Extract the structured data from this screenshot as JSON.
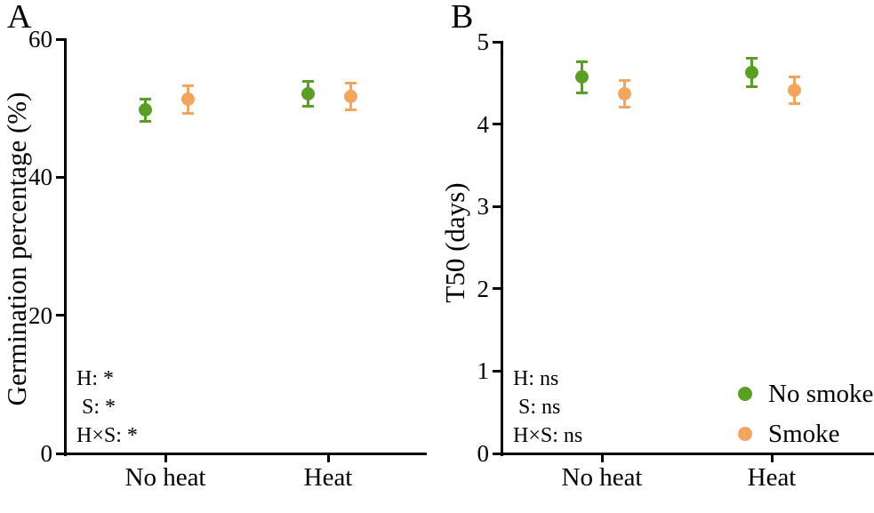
{
  "colors": {
    "no_smoke": "#5a9e24",
    "smoke": "#f2a55f",
    "axis": "#000000",
    "background": "#ffffff"
  },
  "chart_data": [
    {
      "panel": "A",
      "type": "scatter",
      "title": "",
      "xlabel": "",
      "ylabel": "Germination percentage (%)",
      "ylim": [
        0,
        60
      ],
      "yticks": [
        0,
        20,
        40,
        60
      ],
      "grid": false,
      "categories": [
        "No heat",
        "Heat"
      ],
      "series": [
        {
          "name": "No smoke",
          "color": "#5a9e24",
          "values": [
            49.7,
            52.1
          ],
          "errors": [
            1.6,
            1.8
          ]
        },
        {
          "name": "Smoke",
          "color": "#f2a55f",
          "values": [
            51.3,
            51.7
          ],
          "errors": [
            2.0,
            1.9
          ]
        }
      ],
      "stats": [
        "H: *",
        " S: *",
        "H×S: *"
      ],
      "legend_visible": false
    },
    {
      "panel": "B",
      "type": "scatter",
      "title": "",
      "xlabel": "",
      "ylabel": "T50 (days)",
      "ylim": [
        0,
        5
      ],
      "yticks": [
        0,
        1,
        2,
        3,
        4,
        5
      ],
      "grid": false,
      "categories": [
        "No heat",
        "Heat"
      ],
      "series": [
        {
          "name": "No smoke",
          "color": "#5a9e24",
          "values": [
            4.57,
            4.63
          ],
          "errors": [
            0.19,
            0.17
          ]
        },
        {
          "name": "Smoke",
          "color": "#f2a55f",
          "values": [
            4.37,
            4.41
          ],
          "errors": [
            0.16,
            0.16
          ]
        }
      ],
      "stats": [
        "H: ns",
        " S: ns",
        "H×S: ns"
      ],
      "legend_visible": true,
      "legend_position": "bottom-right"
    }
  ]
}
